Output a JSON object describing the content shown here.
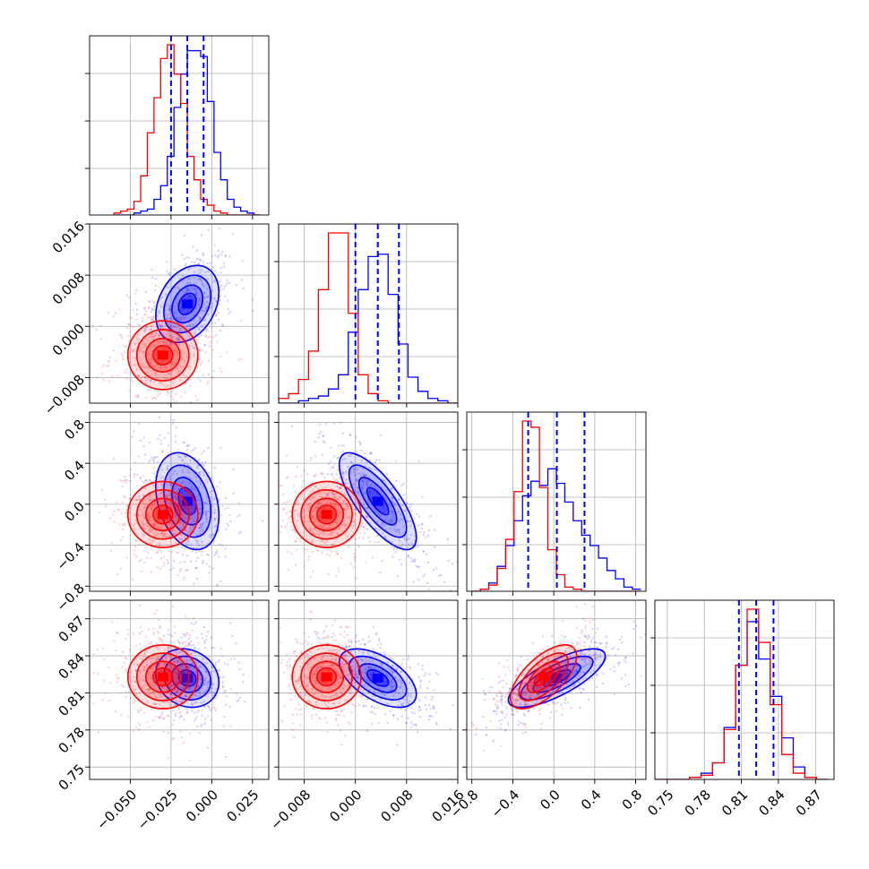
{
  "chart_data": {
    "type": "corner",
    "n_params": 4,
    "grid": true,
    "series": [
      {
        "color": "#0000ff",
        "hist_quantile_lines": [
          [
            -0.025,
            -0.015,
            -0.005
          ],
          [
            0.0,
            0.0035,
            0.0068
          ],
          [
            -0.25,
            0.03,
            0.3
          ],
          [
            0.808,
            0.822,
            0.836
          ]
        ],
        "means": [
          -0.015,
          0.0035,
          0.03,
          0.822
        ],
        "sigmas": [
          0.009,
          0.0028,
          0.22,
          0.011
        ],
        "hist1d": [
          {
            "bins": [
              -0.06,
              0.03
            ],
            "counts": [
              0,
              0,
              0,
              1,
              2,
              3,
              8,
              15,
              30,
              55,
              72,
              84,
              84,
              81,
              58,
              32,
              18,
              8,
              4,
              2,
              1,
              0
            ]
          },
          {
            "bins": [
              -0.012,
              0.016
            ],
            "counts": [
              0,
              0,
              1,
              2,
              3,
              6,
              12,
              30,
              48,
              62,
              63,
              46,
              25,
              11,
              5,
              2,
              1,
              0
            ]
          },
          {
            "bins": [
              -0.8,
              0.85
            ],
            "counts": [
              0,
              1,
              4,
              12,
              22,
              34,
              46,
              53,
              51,
              59,
              52,
              43,
              34,
              27,
              22,
              16,
              10,
              6,
              2,
              1
            ]
          },
          {
            "bins": [
              0.74,
              0.88
            ],
            "counts": [
              0,
              0,
              0,
              1,
              3,
              8,
              25,
              55,
              76,
              58,
              40,
              20,
              6,
              1,
              0
            ]
          }
        ],
        "correlations": {
          "1-0": 0.3,
          "2-0": -0.3,
          "2-1": -0.75,
          "3-0": -0.15,
          "3-1": -0.55,
          "3-2": 0.75
        }
      },
      {
        "color": "#ff0000",
        "means": [
          -0.03,
          -0.0045,
          -0.1,
          0.823
        ],
        "sigmas": [
          0.01,
          0.0025,
          0.15,
          0.012
        ],
        "hist1d": [
          {
            "bins": [
              -0.06,
              0.03
            ],
            "counts": [
              1,
              2,
              3,
              7,
              20,
              42,
              60,
              80,
              87,
              72,
              57,
              30,
              18,
              8,
              5,
              2,
              1,
              0,
              0,
              0,
              0,
              0
            ]
          },
          {
            "bins": [
              -0.012,
              0.016
            ],
            "counts": [
              2,
              4,
              10,
              22,
              48,
              72,
              72,
              38,
              12,
              4,
              1,
              0,
              0,
              0,
              0,
              0,
              0,
              0
            ]
          },
          {
            "bins": [
              -0.8,
              0.85
            ],
            "counts": [
              0,
              1,
              3,
              11,
              25,
              48,
              82,
              79,
              50,
              20,
              8,
              2,
              1,
              0,
              0,
              0,
              0,
              0,
              0,
              0
            ]
          },
          {
            "bins": [
              0.74,
              0.88
            ],
            "counts": [
              0,
              0,
              0,
              1,
              2,
              8,
              24,
              55,
              82,
              66,
              36,
              12,
              3,
              1,
              0
            ]
          }
        ],
        "correlations": {
          "1-0": 0.0,
          "2-0": 0.0,
          "2-1": 0.0,
          "3-0": 0.0,
          "3-1": 0.0,
          "3-2": 0.65
        }
      }
    ],
    "axes": [
      {
        "range": [
          -0.075,
          0.035
        ],
        "ticks": [
          -0.05,
          -0.025,
          0.0,
          0.025
        ],
        "tick_labels": [
          "−0.050",
          "−0.025",
          "0.000",
          "0.025"
        ]
      },
      {
        "range": [
          -0.012,
          0.016
        ],
        "ticks": [
          -0.008,
          0.0,
          0.008,
          0.016
        ],
        "tick_labels": [
          "−0.008",
          "0.000",
          "0.008",
          "0.016"
        ]
      },
      {
        "range": [
          -0.85,
          0.9
        ],
        "ticks": [
          -0.8,
          -0.4,
          0.0,
          0.4,
          0.8
        ],
        "tick_labels": [
          "−0.8",
          "−0.4",
          "0.0",
          "0.4",
          "0.8"
        ]
      },
      {
        "range": [
          0.74,
          0.885
        ],
        "ticks": [
          0.75,
          0.78,
          0.81,
          0.84,
          0.87
        ],
        "tick_labels": [
          "0.75",
          "0.78",
          "0.81",
          "0.84",
          "0.87"
        ]
      }
    ]
  }
}
